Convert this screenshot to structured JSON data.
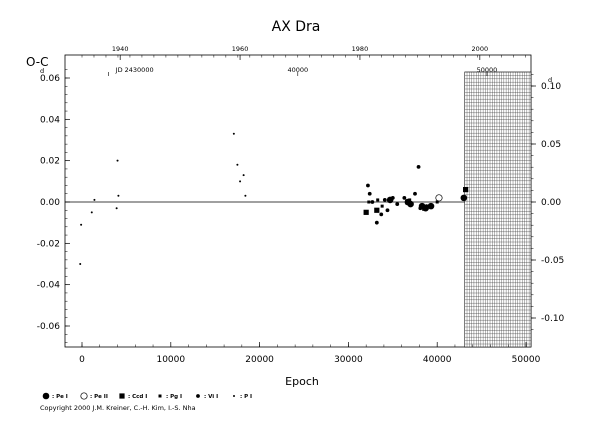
{
  "chart_data": {
    "type": "scatter",
    "title": "AX Dra",
    "xlabel": "Epoch",
    "ylabel": "O-C",
    "ylabel_exponent": "d",
    "xlim": [
      -3000,
      50000
    ],
    "ylim": [
      -0.07,
      0.07
    ],
    "x_ticks": [
      0,
      10000,
      20000,
      30000,
      40000,
      50000
    ],
    "x_tick_labels": [
      "0",
      "10000",
      "20000",
      "30000",
      "40000",
      "50000"
    ],
    "y_ticks": [
      -0.06,
      -0.04,
      -0.02,
      0.0,
      0.02,
      0.04,
      0.06
    ],
    "y_tick_labels": [
      "-0.06",
      "-0.04",
      "-0.02",
      "0.00",
      "0.02",
      "0.04",
      "0.06"
    ],
    "right_axis": {
      "ticks": [
        -0.1,
        -0.05,
        0.0,
        0.05,
        0.1
      ],
      "tick_labels": [
        "-0.10",
        "-0.05",
        "0.00",
        "0.05",
        "0.10"
      ],
      "exponent": "d",
      "ylim": [
        -0.12,
        0.12
      ]
    },
    "top_axis": {
      "year_ticks": [
        1940,
        1960,
        1980,
        2000
      ],
      "year_tick_epochs": [
        4300,
        17800,
        31300,
        44800
      ],
      "jd_ticks": [
        "JD 2430000",
        "40000",
        "50000"
      ],
      "jd_tick_epochs": [
        3000,
        24300,
        45600
      ]
    },
    "reference_line": 0.0,
    "future_region_start": 43100,
    "series": [
      {
        "name": "Pe I",
        "marker": "filled-circle-large",
        "x": [
          34700,
          36700,
          37000,
          38300,
          38700,
          39300,
          43000
        ],
        "y": [
          0.001,
          0.0,
          -0.001,
          -0.002,
          -0.003,
          -0.002,
          0.002
        ]
      },
      {
        "name": "Pe II",
        "marker": "open-circle",
        "x": [
          40200
        ],
        "y": [
          0.002
        ]
      },
      {
        "name": "Ccd I",
        "marker": "filled-square",
        "x": [
          32000,
          33200,
          36700,
          38600,
          43200
        ],
        "y": [
          -0.005,
          -0.004,
          0.0,
          -0.003,
          0.006
        ]
      },
      {
        "name": "Pg I",
        "marker": "small-square",
        "x": [
          32300,
          33300,
          33800,
          36900,
          40000
        ],
        "y": [
          0.0,
          0.001,
          -0.002,
          0.001,
          0.0
        ]
      },
      {
        "name": "Vi I",
        "marker": "filled-dot",
        "x": [
          32200,
          32400,
          32700,
          33200,
          33700,
          34100,
          34400,
          35000,
          35500,
          36300,
          37500,
          37900,
          38100,
          38800
        ],
        "y": [
          0.008,
          0.004,
          0.0,
          -0.01,
          -0.006,
          0.001,
          -0.004,
          0.002,
          -0.001,
          0.002,
          0.004,
          0.017,
          -0.003,
          -0.002
        ]
      },
      {
        "name": "P I",
        "marker": "tiny-dot",
        "x": [
          -200,
          1100,
          1400,
          3900,
          4000,
          4100,
          17100,
          17500,
          17800,
          18200,
          18400
        ],
        "y": [
          -0.03,
          -0.005,
          0.001,
          -0.003,
          0.02,
          0.003,
          0.033,
          0.018,
          0.01,
          0.013,
          0.003
        ]
      },
      {
        "name": "P I faint",
        "marker": "tiny-dot",
        "x": [
          -100
        ],
        "y": [
          -0.011
        ]
      }
    ]
  },
  "legend": [
    {
      "label": ": Pe I",
      "marker": "filled-circle-large"
    },
    {
      "label": ": Pe II",
      "marker": "open-circle"
    },
    {
      "label": ": Ccd I",
      "marker": "filled-square"
    },
    {
      "label": ": Pg I",
      "marker": "small-square"
    },
    {
      "label": ": Vi I",
      "marker": "filled-dot"
    },
    {
      "label": ": P I",
      "marker": "tiny-dot"
    }
  ],
  "copyright": "Copyright 2000 J.M. Kreiner, C.-H. Kim, I.-S. Nha"
}
